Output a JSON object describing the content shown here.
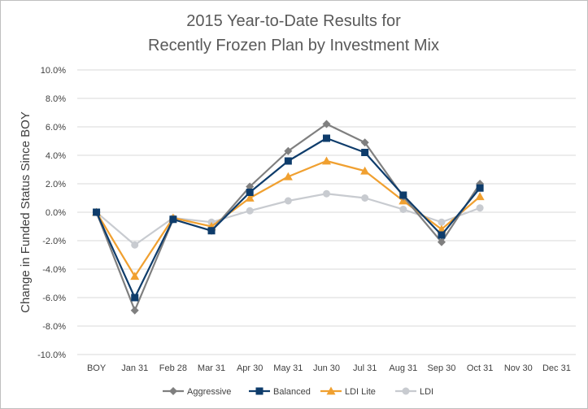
{
  "chart_data": {
    "type": "line",
    "title": [
      "2015 Year-to-Date Results for",
      "Recently Frozen Plan by Investment Mix"
    ],
    "ylabel": "Change in Funded Status Since BOY",
    "xlabel": "",
    "categories": [
      "BOY",
      "Jan 31",
      "Feb 28",
      "Mar 31",
      "Apr 30",
      "May 31",
      "Jun 30",
      "Jul 31",
      "Aug 31",
      "Sep 30",
      "Oct 31",
      "Nov 30",
      "Dec 31"
    ],
    "ylim": [
      -10.0,
      10.0
    ],
    "yticks": [
      "10.0%",
      "8.0%",
      "6.0%",
      "4.0%",
      "2.0%",
      "0.0%",
      "-2.0%",
      "-4.0%",
      "-6.0%",
      "-8.0%",
      "-10.0%"
    ],
    "ytick_values": [
      10,
      8,
      6,
      4,
      2,
      0,
      -2,
      -4,
      -6,
      -8,
      -10
    ],
    "grid": true,
    "legend_position": "bottom",
    "series": [
      {
        "name": "Aggressive",
        "color": "#7f7f7f",
        "marker": "diamond",
        "values": [
          0.0,
          -6.9,
          -0.5,
          -1.3,
          1.8,
          4.3,
          6.2,
          4.9,
          1.1,
          -2.1,
          2.0,
          null,
          null
        ]
      },
      {
        "name": "Balanced",
        "color": "#0e3c6b",
        "marker": "square",
        "values": [
          0.0,
          -6.0,
          -0.5,
          -1.3,
          1.4,
          3.6,
          5.2,
          4.2,
          1.2,
          -1.6,
          1.7,
          null,
          null
        ]
      },
      {
        "name": "LDI Lite",
        "color": "#f0a030",
        "marker": "triangle",
        "values": [
          0.0,
          -4.5,
          -0.4,
          -1.0,
          1.0,
          2.5,
          3.6,
          2.9,
          0.8,
          -1.2,
          1.1,
          null,
          null
        ]
      },
      {
        "name": "LDI",
        "color": "#c8cbd0",
        "marker": "circle",
        "values": [
          0.0,
          -2.3,
          -0.4,
          -0.7,
          0.1,
          0.8,
          1.3,
          1.0,
          0.2,
          -0.7,
          0.3,
          null,
          null
        ]
      }
    ]
  }
}
